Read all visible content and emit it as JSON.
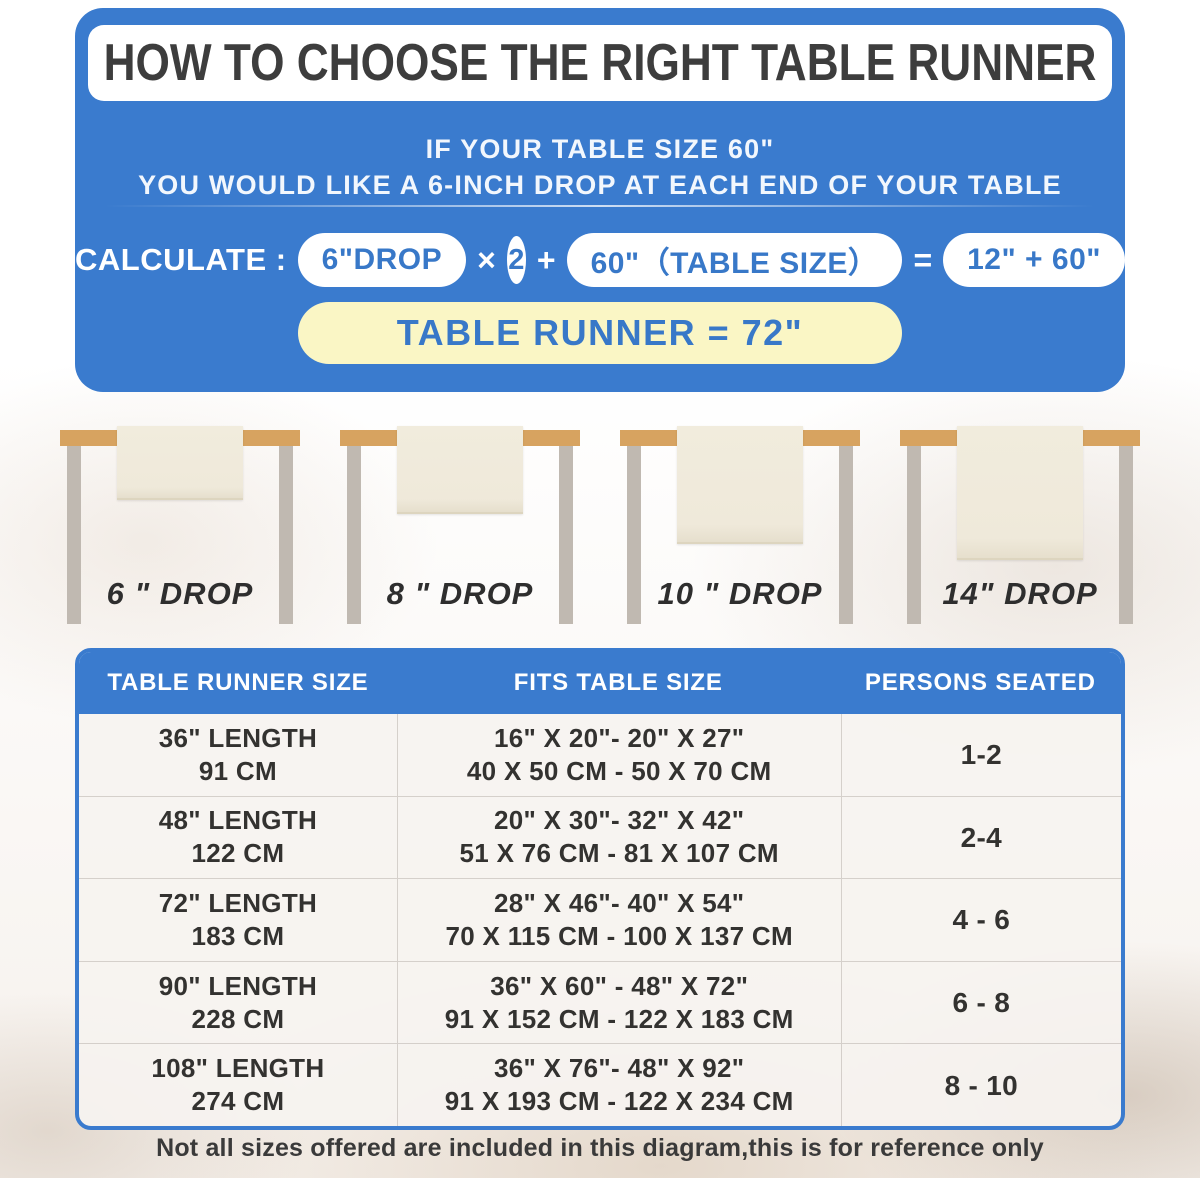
{
  "colors": {
    "blue": "#3a7bce",
    "blue-text": "#3878c8",
    "yellow": "#faf6c5",
    "ink": "#3d3d3d",
    "tan": "#d7a360",
    "leg": "#c0b9b1",
    "cream": "#f1ecdd"
  },
  "banner": {
    "title": "HOW TO CHOOSE THE RIGHT TABLE RUNNER",
    "subtitle_line1": "IF YOUR TABLE SIZE 60\"",
    "subtitle_line2": "YOU WOULD LIKE A 6-INCH DROP AT EACH END OF YOUR TABLE",
    "calculate": {
      "label": "CALCULATE :",
      "drop_pill": "6\"DROP",
      "times": "×",
      "multiplier": "2",
      "plus": "+",
      "table_size_pill": "60\"（TABLE SIZE）",
      "equals": "=",
      "result_pill": "12\" + 60\"",
      "final": "TABLE RUNNER = 72\""
    }
  },
  "illustrations": [
    {
      "label": "6 \" DROP"
    },
    {
      "label": "8 \" DROP"
    },
    {
      "label": "10 \" DROP"
    },
    {
      "label": "14\" DROP"
    }
  ],
  "size_table": {
    "headers": [
      "TABLE RUNNER SIZE",
      "FITS TABLE SIZE",
      "PERSONS SEATED"
    ],
    "rows": [
      {
        "runner_in": "36\" LENGTH",
        "runner_cm": "91 CM",
        "fits_in": "16\" X 20\"- 20\" X 27\"",
        "fits_cm": "40 X 50 CM - 50 X 70 CM",
        "persons": "1-2"
      },
      {
        "runner_in": "48\" LENGTH",
        "runner_cm": "122 CM",
        "fits_in": "20\" X 30\"- 32\" X 42\"",
        "fits_cm": "51 X 76 CM - 81 X 107 CM",
        "persons": "2-4"
      },
      {
        "runner_in": "72\" LENGTH",
        "runner_cm": "183 CM",
        "fits_in": "28\" X 46\"- 40\" X 54\"",
        "fits_cm": "70 X 115 CM - 100 X 137 CM",
        "persons": "4 - 6"
      },
      {
        "runner_in": "90\" LENGTH",
        "runner_cm": "228 CM",
        "fits_in": "36\" X 60\" - 48\" X 72\"",
        "fits_cm": "91 X 152 CM - 122 X 183 CM",
        "persons": "6 - 8"
      },
      {
        "runner_in": "108\" LENGTH",
        "runner_cm": "274 CM",
        "fits_in": "36\" X 76\"- 48\" X 92\"",
        "fits_cm": "91 X 193 CM - 122 X 234 CM",
        "persons": "8 - 10"
      }
    ]
  },
  "footer": {
    "note": "Not all sizes offered are included in this diagram,this is for reference only"
  }
}
